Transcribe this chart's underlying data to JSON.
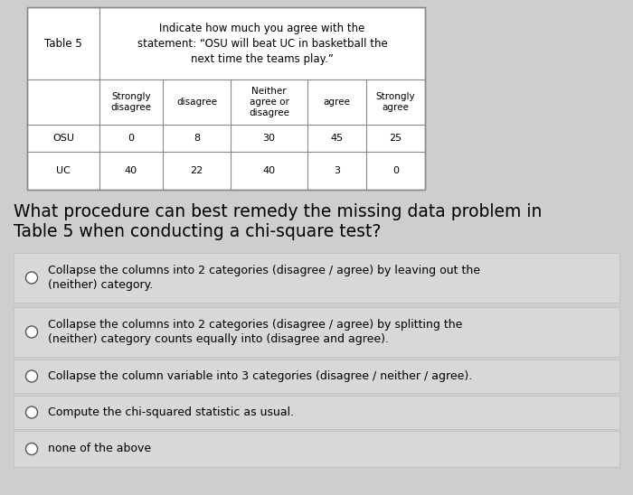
{
  "table_label": "Table 5",
  "table_title": "Indicate how much you agree with the\nstatement: “OSU will beat UC in basketball the\nnext time the teams play.”",
  "col_headers": [
    "Strongly\ndisagree",
    "disagree",
    "Neither\nagree or\ndisagree",
    "agree",
    "Strongly\nagree"
  ],
  "rows": [
    {
      "label": "OSU",
      "values": [
        0,
        8,
        30,
        45,
        25
      ]
    },
    {
      "label": "UC",
      "values": [
        40,
        22,
        40,
        3,
        0
      ]
    }
  ],
  "question_line1": "What procedure can best remedy the missing data problem in",
  "question_line2": "Table 5 when conducting a chi-square test?",
  "options": [
    "Collapse the columns into 2 categories (disagree / agree) by leaving out the\n(neither) category.",
    "Collapse the columns into 2 categories (disagree / agree) by splitting the\n(neither) category counts equally into (disagree and agree).",
    "Collapse the column variable into 3 categories (disagree / neither / agree).",
    "Compute the chi-squared statistic as usual.",
    "none of the above"
  ],
  "bg_color": "#cecece",
  "table_bg": "#ffffff",
  "option_bg": "#d8d8d8",
  "table_border": "#888888",
  "option_border": "#bbbbbb"
}
